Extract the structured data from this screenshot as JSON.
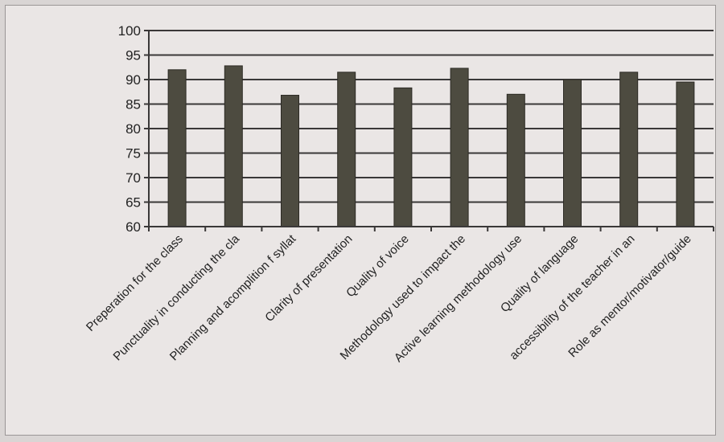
{
  "chart_data": {
    "type": "bar",
    "title": "",
    "xlabel": "",
    "ylabel": "",
    "ylim": [
      60,
      100
    ],
    "ytick_step": 5,
    "grid": true,
    "legend": "none",
    "categories": [
      "Preperation for the class",
      "Punctuality in conducting the cla",
      "Planning and acomplition f syllat",
      "Clarity of presentation",
      "Quality of voice",
      "Methodology used to impact the",
      "Active learning methodology use",
      "Quality of language",
      "accessibility of the teacher in an",
      "Role as mentor/motivator/guide"
    ],
    "values": [
      92,
      92.8,
      86.8,
      91.5,
      88.3,
      92.3,
      87,
      90,
      91.5,
      89.5
    ],
    "colors": {
      "bar": "#4d4b40",
      "bar_edge": "#2c2a24",
      "grid": "#3a3838",
      "axis": "#3a3838"
    }
  }
}
